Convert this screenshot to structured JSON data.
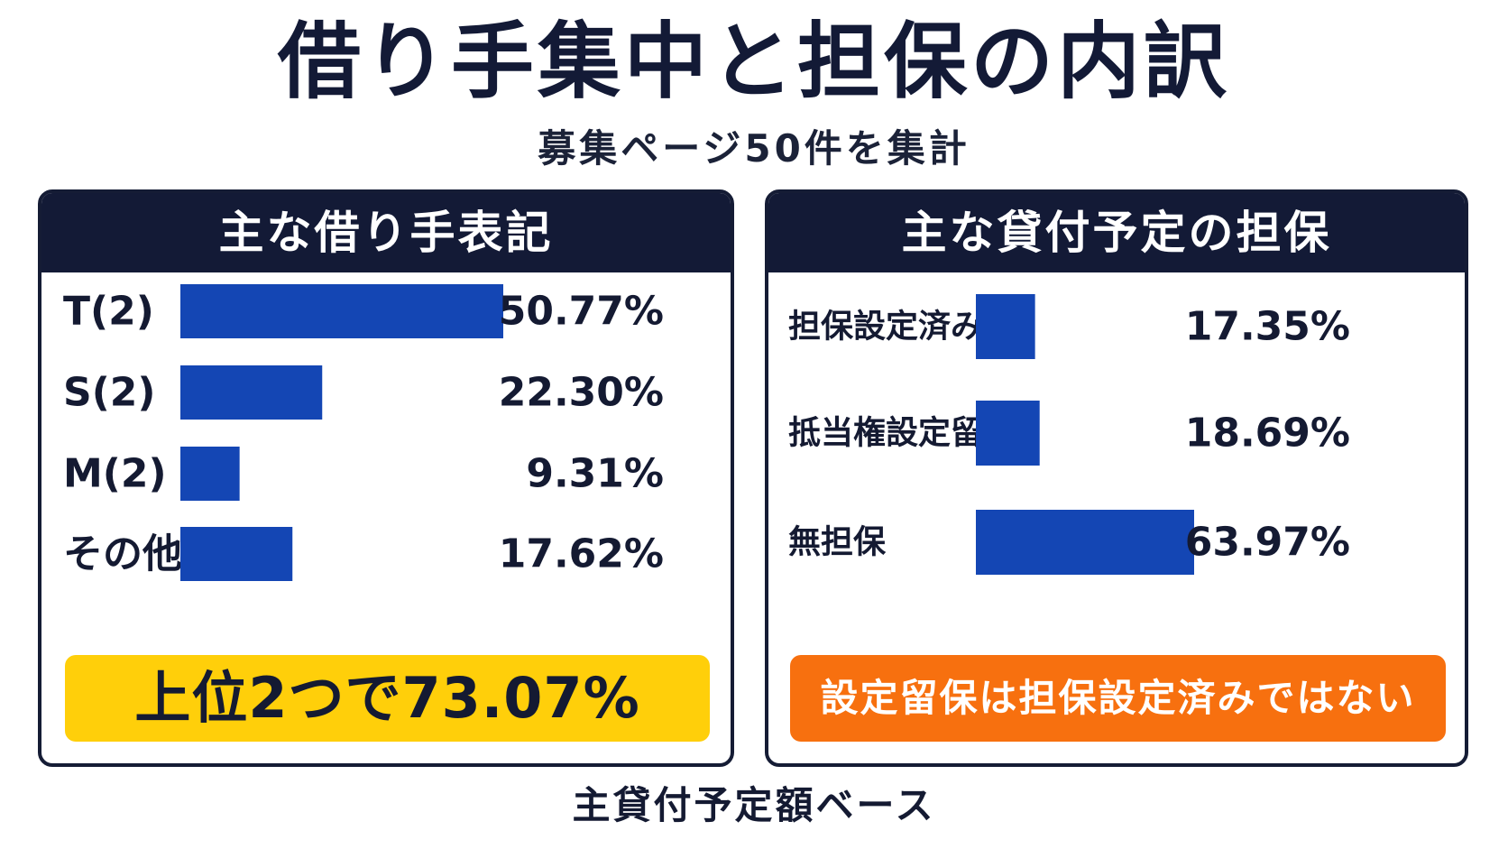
{
  "title": "借り手集中と担保の内訳",
  "subtitle": "募集ページ50件を集計",
  "footer": "主貸付予定額ベース",
  "colors": {
    "navy": "#131a36",
    "bar": "#1446b4",
    "highlight_yellow": "#ffcf0a",
    "highlight_orange": "#f7700f"
  },
  "panels": {
    "left": {
      "header": "主な借り手表記",
      "callout": "上位2つで73.07%"
    },
    "right": {
      "header": "主な貸付予定の担保",
      "callout": "設定留保は担保設定済みではない"
    }
  },
  "chart_data": [
    {
      "type": "bar",
      "title": "主な借り手表記",
      "categories": [
        "T(2)",
        "S(2)",
        "M(2)",
        "その他"
      ],
      "values": [
        50.77,
        22.3,
        9.31,
        17.62
      ],
      "value_labels": [
        "50.77%",
        "22.30%",
        "9.31%",
        "17.62%"
      ],
      "unit": "%",
      "orientation": "horizontal",
      "grid": false
    },
    {
      "type": "bar",
      "title": "主な貸付予定の担保",
      "categories": [
        "担保設定済み",
        "抵当権設定留保",
        "無担保"
      ],
      "values": [
        17.35,
        18.69,
        63.97
      ],
      "value_labels": [
        "17.35%",
        "18.69%",
        "63.97%"
      ],
      "unit": "%",
      "orientation": "horizontal",
      "grid": false
    }
  ]
}
